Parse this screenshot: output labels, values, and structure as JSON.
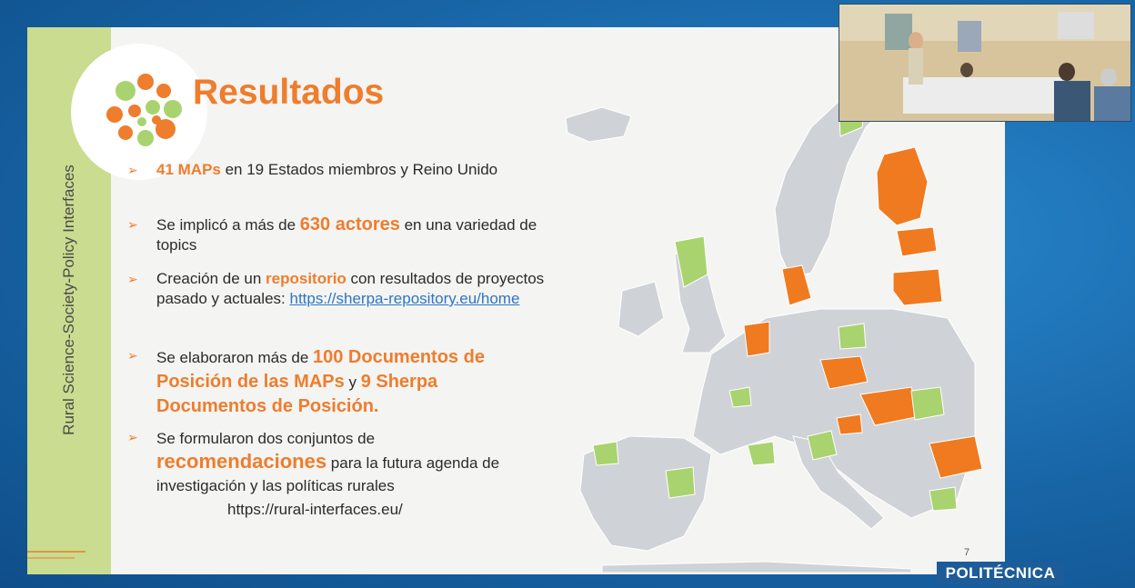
{
  "slide": {
    "title": "Resultados",
    "side_label": "Rural Science-Society-Policy Interfaces",
    "page_number": "7",
    "url": "https://rural-interfaces.eu/",
    "bullets": [
      {
        "pre": "",
        "hl1": "41 MAPs",
        "mid": " en 19 Estados miembros y Reino Unido",
        "hl2": "",
        "post": ""
      },
      {
        "pre": "Se implicó a más de ",
        "hl1": "630 actores",
        "mid": " en una variedad de topics",
        "hl2": "",
        "post": ""
      },
      {
        "pre": "Creación de un ",
        "hl1": "repositorio",
        "mid": " con resultados de proyectos pasado y actuales: ",
        "link": "https://sherpa-repository.eu/home"
      },
      {
        "pre": "Se elaboraron más de ",
        "hl1": "100 Documentos de Posición de las MAPs",
        "mid": " y ",
        "hl2": "9 Sherpa Documentos de Posición."
      },
      {
        "pre": "Se formularon dos conjuntos de ",
        "hl1": "recomendaciones",
        "mid": " para la futura agenda de investigación y las políticas rurales"
      }
    ]
  },
  "map_legend": {
    "orange": "#f07a1f",
    "green": "#a9d36e",
    "grey": "#cfd2d6"
  },
  "brand": "POLITÉCNICA",
  "colors": {
    "accent": "#ee7d2d",
    "side_band": "#c9dc8f",
    "background": "#1c6fb0"
  }
}
